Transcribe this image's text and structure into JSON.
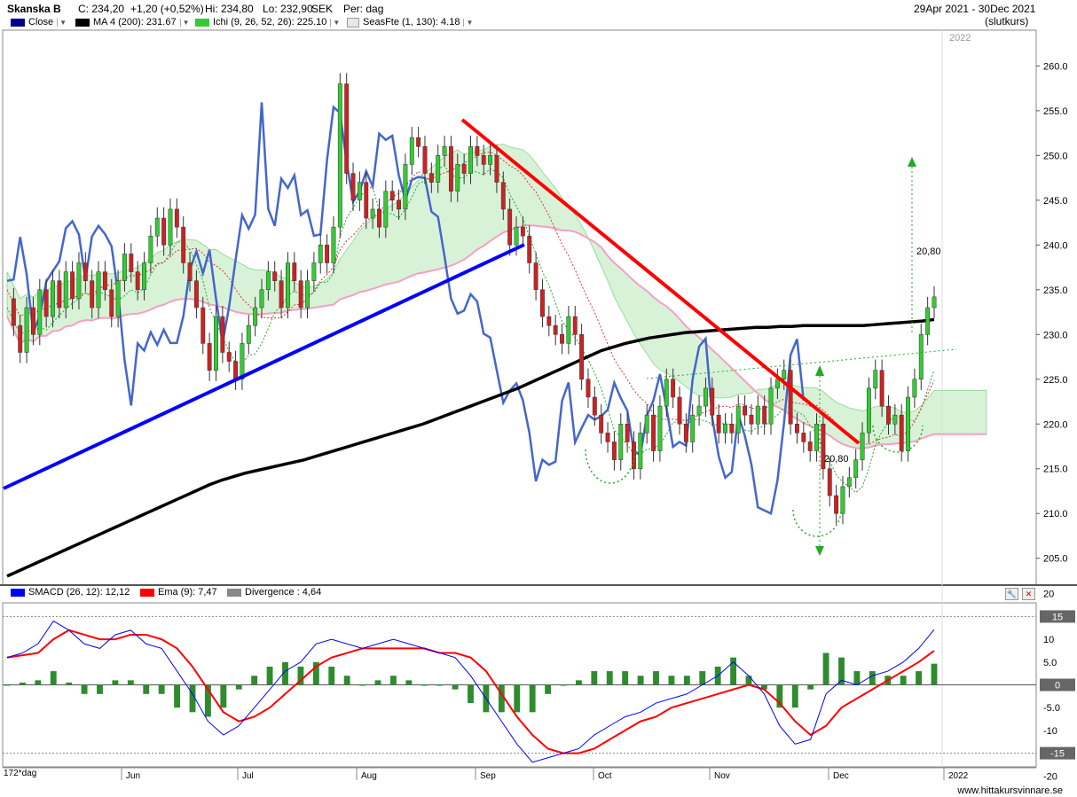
{
  "header": {
    "stock": "Skanska B",
    "close": "C: 234,20",
    "change": "+1,20 (+0,52%)",
    "high": "Hi: 234,80",
    "low": "Lo: 232,90",
    "currency": "SEK",
    "period": "Per: dag",
    "date_range": "29Apr 2021 - 30Dec 2021",
    "price_type": "(slutkurs)"
  },
  "legend_top": [
    {
      "label": "Close",
      "color": "#00008b"
    },
    {
      "label": "MA 4 (200): 231.67",
      "color": "#000000"
    },
    {
      "label": "Ichi (9, 26, 52, 26): 225.10",
      "color": "#33cc33"
    },
    {
      "label": "SeasFte (1, 130): 4.18",
      "color": "#e8e8e8"
    }
  ],
  "legend_bottom": [
    {
      "label": "SMACD (26, 12): 12,12",
      "color": "#0000ff"
    },
    {
      "label": "Ema (9): 7,47",
      "color": "#ff0000"
    },
    {
      "label": "Divergence : 4,64",
      "color": "#888888"
    }
  ],
  "year_label_top": "2022",
  "footer": {
    "period_label": "172*dag",
    "source": "www.hittakursvinnare.se"
  },
  "annotations": {
    "target_upper": "20,80",
    "target_lower": "20,80"
  },
  "colors": {
    "up": "#33cc33",
    "down": "#cc2222",
    "trend_red": "#ff0000",
    "trend_blue": "#0000ff",
    "seasonal": "#4466cc",
    "ma": "#000000",
    "cloud_green": "#c8ecc8",
    "cloud_pink": "#f8c8d8"
  },
  "chart_data": [
    {
      "type": "candlestick",
      "title": "Skanska B",
      "ylim": [
        202,
        264
      ],
      "y_ticks": [
        "205.0",
        "210.0",
        "215.0",
        "220.0",
        "225.0",
        "230.0",
        "235.0",
        "240.0",
        "245.0",
        "250.0",
        "255.0",
        "260.0"
      ],
      "x_ticks": [
        "Jun",
        "Jul",
        "Aug",
        "Sep",
        "Oct",
        "Nov",
        "Dec",
        "2022"
      ],
      "close": [
        234,
        231,
        228,
        233,
        230,
        235,
        232,
        236,
        233,
        237,
        234,
        238,
        236,
        233,
        237,
        235,
        232,
        236,
        239,
        237,
        235,
        238,
        241,
        243,
        240,
        244,
        242,
        238,
        236,
        233,
        229,
        226,
        232,
        228,
        227,
        225,
        229,
        231,
        233,
        235,
        237,
        236,
        233,
        238,
        236,
        233,
        236,
        238,
        240,
        238,
        242,
        258,
        248,
        245,
        247,
        243,
        244,
        242,
        246,
        245,
        244,
        249,
        252,
        251,
        248,
        247,
        250,
        251,
        246,
        249,
        248,
        251,
        250,
        249,
        250,
        247,
        244,
        240,
        242,
        241,
        238,
        235,
        232,
        231,
        230,
        229,
        232,
        230,
        225,
        223,
        221,
        219,
        218,
        216,
        220,
        218,
        215,
        219,
        221,
        217,
        222,
        225,
        223,
        220,
        218,
        221,
        222,
        224,
        221,
        219,
        220,
        219,
        222,
        221,
        220,
        222,
        220,
        224,
        225,
        226,
        220,
        219,
        218,
        217,
        220,
        215,
        212,
        210,
        213,
        214,
        216,
        219,
        224,
        226,
        222,
        220,
        221,
        217,
        223,
        225,
        230,
        233,
        234.2
      ],
      "ma200": [
        203,
        203.6,
        204.2,
        204.8,
        205.4,
        206,
        206.6,
        207.2,
        207.8,
        208.4,
        209,
        209.6,
        210.2,
        210.8,
        211.4,
        212,
        212.6,
        213.2,
        213.7,
        214.1,
        214.5,
        214.8,
        215.1,
        215.4,
        215.7,
        216,
        216.4,
        216.8,
        217.2,
        217.6,
        218,
        218.4,
        218.8,
        219.2,
        219.6,
        220,
        220.5,
        221,
        221.5,
        222,
        222.5,
        223,
        223.5,
        224,
        224.6,
        225.2,
        225.8,
        226.4,
        227,
        227.6,
        228.2,
        228.6,
        229,
        229.3,
        229.6,
        229.8,
        230,
        230.2,
        230.3,
        230.4,
        230.5,
        230.6,
        230.7,
        230.8,
        230.8,
        230.9,
        230.9,
        231,
        231,
        231,
        231,
        231,
        231,
        231.1,
        231.2,
        231.3,
        231.4,
        231.5,
        231.67
      ]
    },
    {
      "type": "bar",
      "title": "SMACD (26, 12)",
      "ylim": [
        -18,
        18
      ],
      "y_ticks": [
        "20",
        "10",
        "5.0",
        "-5.0",
        "-10",
        "-20"
      ],
      "ref_lines": [
        15,
        0,
        -15
      ],
      "smacd": [
        6,
        7,
        9,
        14,
        12,
        9,
        8,
        11,
        12,
        9,
        8,
        3,
        -2,
        -8,
        -11,
        -9,
        -5,
        -1,
        3,
        5,
        9,
        10,
        9,
        8,
        9,
        10,
        9,
        8,
        7,
        6,
        2,
        -3,
        -8,
        -13,
        -17,
        -16,
        -15,
        -14,
        -11,
        -9,
        -7,
        -6,
        -4,
        -3,
        -2,
        0,
        2,
        5,
        2,
        -2,
        -9,
        -13,
        -12,
        -2,
        1,
        0,
        2,
        3,
        5,
        8,
        12.12
      ],
      "ema": [
        6,
        6.5,
        7,
        10,
        12,
        11,
        10,
        10,
        11,
        11,
        10,
        8,
        4,
        -1,
        -6,
        -8,
        -7,
        -5,
        -2,
        1,
        4,
        6,
        7,
        8,
        8,
        8,
        8,
        8,
        7,
        7,
        6,
        3,
        -2,
        -7,
        -11,
        -14,
        -15,
        -15,
        -14,
        -12,
        -10,
        -8,
        -7,
        -5,
        -4,
        -3,
        -2,
        -1,
        0,
        -1,
        -4,
        -8,
        -11,
        -9,
        -5,
        -3,
        -1,
        1,
        3,
        5,
        7.47
      ],
      "divergence": [
        0,
        0.5,
        1,
        3,
        0.5,
        -2,
        -2,
        1,
        1,
        -2,
        -2,
        -5,
        -6,
        -7,
        -5,
        -1,
        2,
        4,
        5,
        4,
        5,
        4,
        2,
        0,
        1,
        2,
        1,
        0,
        0,
        -1,
        -4,
        -6,
        -6,
        -6,
        -6,
        -2,
        0,
        1,
        3,
        3,
        3,
        2,
        3,
        2,
        2,
        3,
        4,
        6,
        2,
        -1,
        -5,
        -5,
        -1,
        7,
        6,
        3,
        3,
        2,
        2,
        3,
        4.64
      ]
    }
  ]
}
